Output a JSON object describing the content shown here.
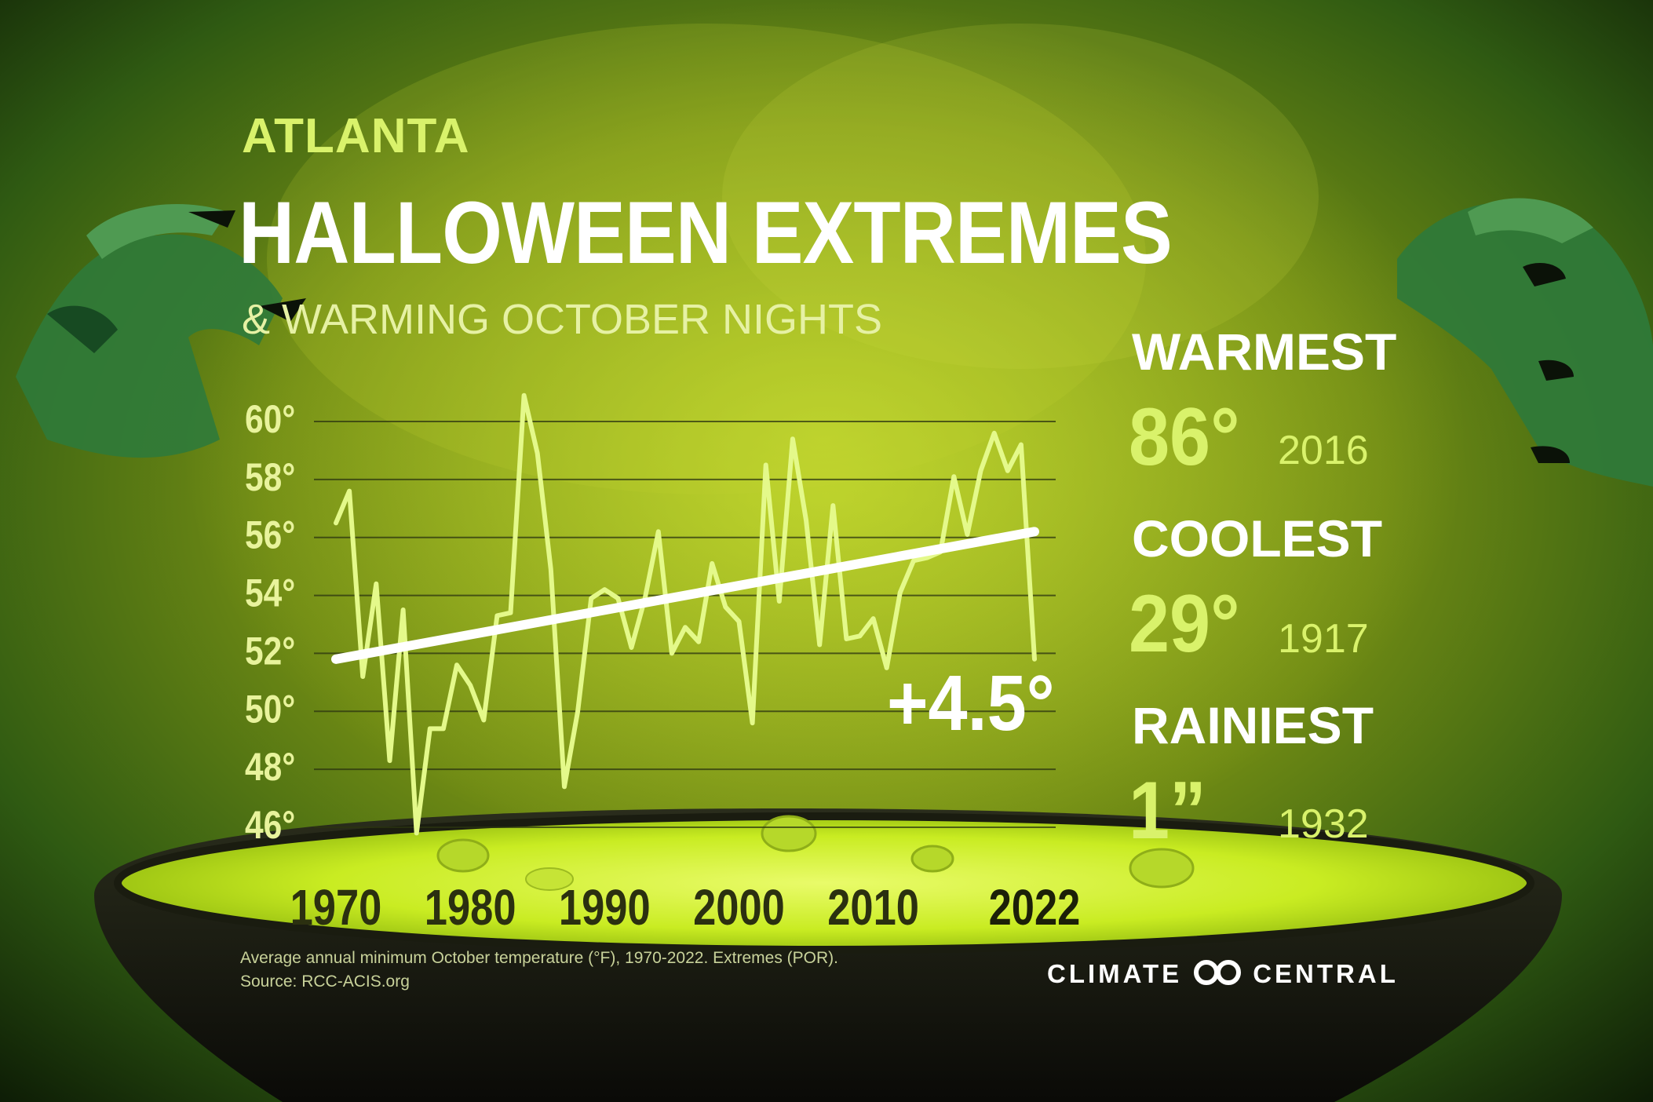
{
  "header": {
    "city": "ATLANTA",
    "title": "HALLOWEEN EXTREMES",
    "subtitle": "& WARMING OCTOBER NIGHTS"
  },
  "stats": [
    {
      "label": "WARMEST",
      "value": "86°",
      "year": "2016"
    },
    {
      "label": "COOLEST",
      "value": "29°",
      "year": "1917"
    },
    {
      "label": "RAINIEST",
      "value": "1”",
      "year": "1932"
    }
  ],
  "trend_label": "+4.5°",
  "footnote": {
    "line1": "Average annual minimum October temperature (°F), 1970-2022. Extremes (POR).",
    "line2": "Source: RCC-ACIS.org"
  },
  "brand": {
    "left": "CLIMATE",
    "right": "CENTRAL"
  },
  "colors": {
    "line": "#e4f98a",
    "trend": "#ffffff",
    "accent": "#d9f26b",
    "cauldron_liquid": "#d8f436",
    "background": "#2f5a12"
  },
  "chart_data": {
    "type": "line",
    "title": "",
    "xlabel": "",
    "ylabel": "",
    "ylim": [
      45.5,
      61.5
    ],
    "xlim": [
      1970,
      2022
    ],
    "grid": true,
    "yticks": [
      46,
      48,
      50,
      52,
      54,
      56,
      58,
      60
    ],
    "ytick_labels": [
      "46°",
      "48°",
      "50°",
      "52°",
      "54°",
      "56°",
      "58°",
      "60°"
    ],
    "xticks": [
      1970,
      1980,
      1990,
      2000,
      2010,
      2022
    ],
    "xtick_labels": [
      "1970",
      "1980",
      "1990",
      "2000",
      "2010",
      "2022"
    ],
    "series": [
      {
        "x": [
          1970,
          1971,
          1972,
          1973,
          1974,
          1975,
          1976,
          1977,
          1978,
          1979,
          1980,
          1981,
          1982,
          1983,
          1984,
          1985,
          1986,
          1987,
          1988,
          1989,
          1990,
          1991,
          1992,
          1993,
          1994,
          1995,
          1996,
          1997,
          1998,
          1999,
          2000,
          2001,
          2002,
          2003,
          2004,
          2005,
          2006,
          2007,
          2008,
          2009,
          2010,
          2011,
          2012,
          2013,
          2014,
          2015,
          2016,
          2017,
          2018,
          2019,
          2020,
          2021,
          2022
        ],
        "values": [
          56.5,
          57.6,
          51.2,
          54.4,
          48.3,
          53.5,
          45.8,
          49.4,
          49.4,
          51.6,
          50.9,
          49.7,
          53.3,
          53.4,
          60.9,
          58.9,
          54.9,
          47.4,
          50.0,
          53.9,
          54.2,
          53.9,
          52.2,
          53.9,
          56.2,
          52.0,
          52.9,
          52.4,
          55.1,
          53.6,
          53.1,
          49.6,
          58.5,
          53.8,
          59.4,
          56.6,
          52.3,
          57.1,
          52.5,
          52.6,
          53.2,
          51.5,
          54.1,
          55.2,
          55.3,
          55.5,
          58.1,
          56.1,
          58.3,
          59.6,
          58.3,
          59.2,
          51.8
        ]
      },
      {
        "name": "trend",
        "x": [
          1970,
          2022
        ],
        "values": [
          51.8,
          56.2
        ]
      }
    ]
  }
}
